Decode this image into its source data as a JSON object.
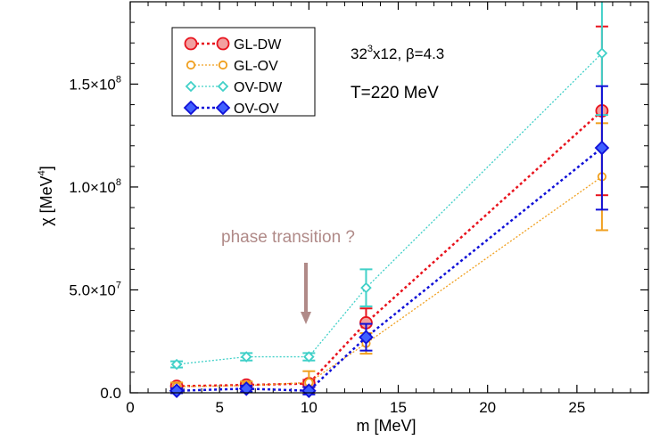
{
  "chart_data": {
    "type": "scatter",
    "xlabel": "m [MeV]",
    "ylabel": "χ [MeV⁴]",
    "xlim": [
      0,
      29
    ],
    "ylim": [
      0,
      190000000
    ],
    "xticks": [
      0,
      5,
      10,
      15,
      20,
      25
    ],
    "xtick_labels": [
      "0",
      "5",
      "10",
      "15",
      "20",
      "25"
    ],
    "yticks": [
      0,
      50000000,
      100000000,
      150000000
    ],
    "ytick_labels": [
      {
        "mant": "0.0",
        "exp": ""
      },
      {
        "mant": "5.0×10",
        "exp": "7"
      },
      {
        "mant": "1.0×10",
        "exp": "8"
      },
      {
        "mant": "1.5×10",
        "exp": "8"
      }
    ],
    "series": [
      {
        "name": "GL-DW",
        "color": "#e8131d",
        "fill": "#f2a0a0",
        "marker": "circle",
        "size": 6.5,
        "dash": "3,3",
        "width": 2.5,
        "x": [
          2.6,
          6.5,
          10.0,
          13.2,
          26.4
        ],
        "y": [
          3200000,
          3800000,
          4500000,
          34000000,
          137000000
        ],
        "err": [
          1500000,
          1500000,
          1800000,
          7000000,
          41000000
        ]
      },
      {
        "name": "GL-OV",
        "color": "#f0a020",
        "fill": "#ffffff",
        "marker": "circle",
        "size": 4.2,
        "dash": "2,2",
        "width": 1.3,
        "x": [
          2.6,
          6.5,
          10.0,
          13.2,
          26.4
        ],
        "y": [
          3000000,
          3500000,
          5000000,
          24000000,
          105000000
        ],
        "err": [
          2000000,
          2000000,
          5500000,
          5000000,
          26000000
        ]
      },
      {
        "name": "OV-DW",
        "color": "#40d0c8",
        "fill": "#ffffff",
        "marker": "diamond",
        "size": 5,
        "dash": "2,2",
        "width": 1.3,
        "x": [
          2.6,
          6.5,
          10.0,
          13.2,
          26.4
        ],
        "y": [
          13800000,
          17500000,
          17500000,
          51000000,
          165000000
        ],
        "err": [
          1500000,
          1800000,
          1800000,
          9000000,
          30000000
        ]
      },
      {
        "name": "OV-OV",
        "color": "#1010d8",
        "fill": "#4060ff",
        "marker": "diamond",
        "size": 7,
        "dash": "3,3",
        "width": 2.5,
        "x": [
          2.6,
          6.5,
          10.0,
          13.2,
          26.4
        ],
        "y": [
          1000000,
          2000000,
          1000000,
          27000000,
          119000000
        ],
        "err": [
          1200000,
          1500000,
          1800000,
          6500000,
          30000000
        ]
      }
    ],
    "annotations": {
      "lattice": {
        "pre": "32",
        "sup": "3",
        "post": "x12, β=4.3"
      },
      "temperature": "T=220 MeV",
      "phase": "phase transition ?"
    },
    "legend_position": "top-left",
    "phase_color": "#b08a88"
  }
}
